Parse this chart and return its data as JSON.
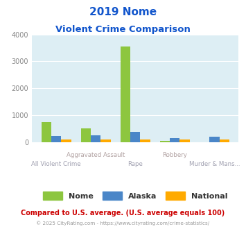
{
  "title_line1": "2019 Nome",
  "title_line2": "Violent Crime Comparison",
  "groups": [
    {
      "label_top": "",
      "label_bot": "All Violent Crime",
      "nome": 730,
      "alaska": 230,
      "national": 100
    },
    {
      "label_top": "Aggravated Assault",
      "label_bot": "",
      "nome": 500,
      "alaska": 240,
      "national": 100
    },
    {
      "label_top": "",
      "label_bot": "Rape",
      "nome": 3550,
      "alaska": 370,
      "national": 100
    },
    {
      "label_top": "Robbery",
      "label_bot": "",
      "nome": 50,
      "alaska": 135,
      "national": 100
    },
    {
      "label_top": "",
      "label_bot": "Murder & Mans...",
      "nome": 0,
      "alaska": 195,
      "national": 100
    }
  ],
  "nome_color": "#8dc63f",
  "alaska_color": "#4a86c8",
  "national_color": "#ffaa00",
  "bg_color": "#ddeef4",
  "title_color": "#1155cc",
  "axis_label_color_top": "#b0a0a0",
  "axis_label_color_bot": "#a0a0b0",
  "ylabel_max": 4000,
  "yticks": [
    0,
    1000,
    2000,
    3000,
    4000
  ],
  "footnote1": "Compared to U.S. average. (U.S. average equals 100)",
  "footnote2": "© 2025 CityRating.com - https://www.cityrating.com/crime-statistics/",
  "footnote1_color": "#cc0000",
  "footnote2_color": "#999999"
}
